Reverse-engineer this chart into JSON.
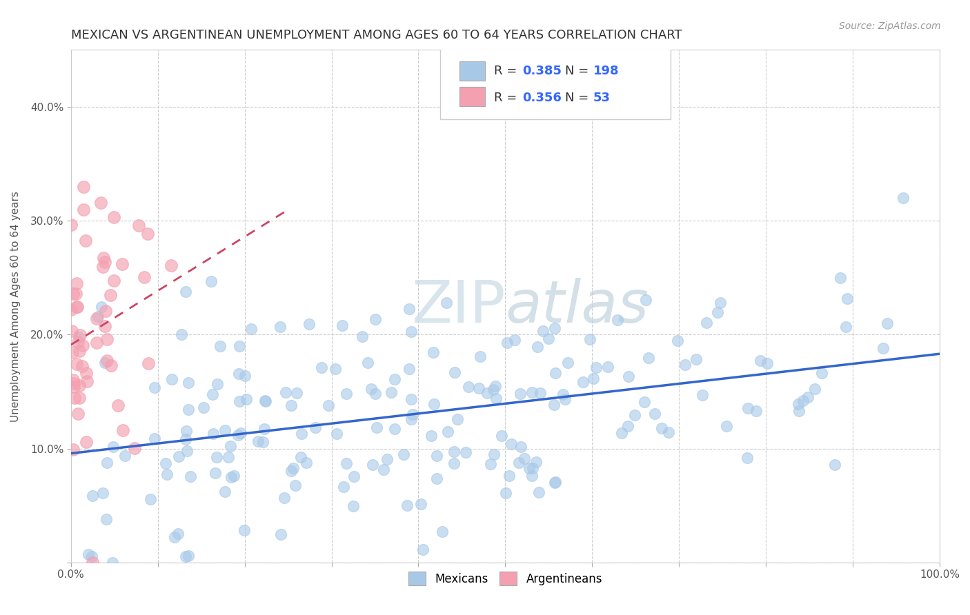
{
  "title": "MEXICAN VS ARGENTINEAN UNEMPLOYMENT AMONG AGES 60 TO 64 YEARS CORRELATION CHART",
  "source": "Source: ZipAtlas.com",
  "ylabel": "Unemployment Among Ages 60 to 64 years",
  "watermark_zip": "ZIP",
  "watermark_atlas": "atlas",
  "mexican_R": 0.385,
  "mexican_N": 198,
  "argentinean_R": 0.356,
  "argentinean_N": 53,
  "mexican_color": "#a8c8e8",
  "mexican_line_color": "#3366cc",
  "argentinean_color": "#f4a0b0",
  "argentinean_line_color": "#cc4466",
  "background_color": "#ffffff",
  "xlim": [
    0,
    1.0
  ],
  "ylim": [
    0,
    0.45
  ],
  "xticks": [
    0.0,
    0.1,
    0.2,
    0.3,
    0.4,
    0.5,
    0.6,
    0.7,
    0.8,
    0.9,
    1.0
  ],
  "xticklabels": [
    "0.0%",
    "",
    "",
    "",
    "",
    "",
    "",
    "",
    "",
    "",
    "100.0%"
  ],
  "yticks": [
    0.0,
    0.1,
    0.2,
    0.3,
    0.4
  ],
  "yticklabels": [
    "",
    "10.0%",
    "20.0%",
    "30.0%",
    "40.0%"
  ],
  "grid_color": "#cccccc",
  "title_fontsize": 13,
  "axis_fontsize": 11,
  "value_color": "#3366ff",
  "label_color": "#333333",
  "tick_label_color": "#555555"
}
